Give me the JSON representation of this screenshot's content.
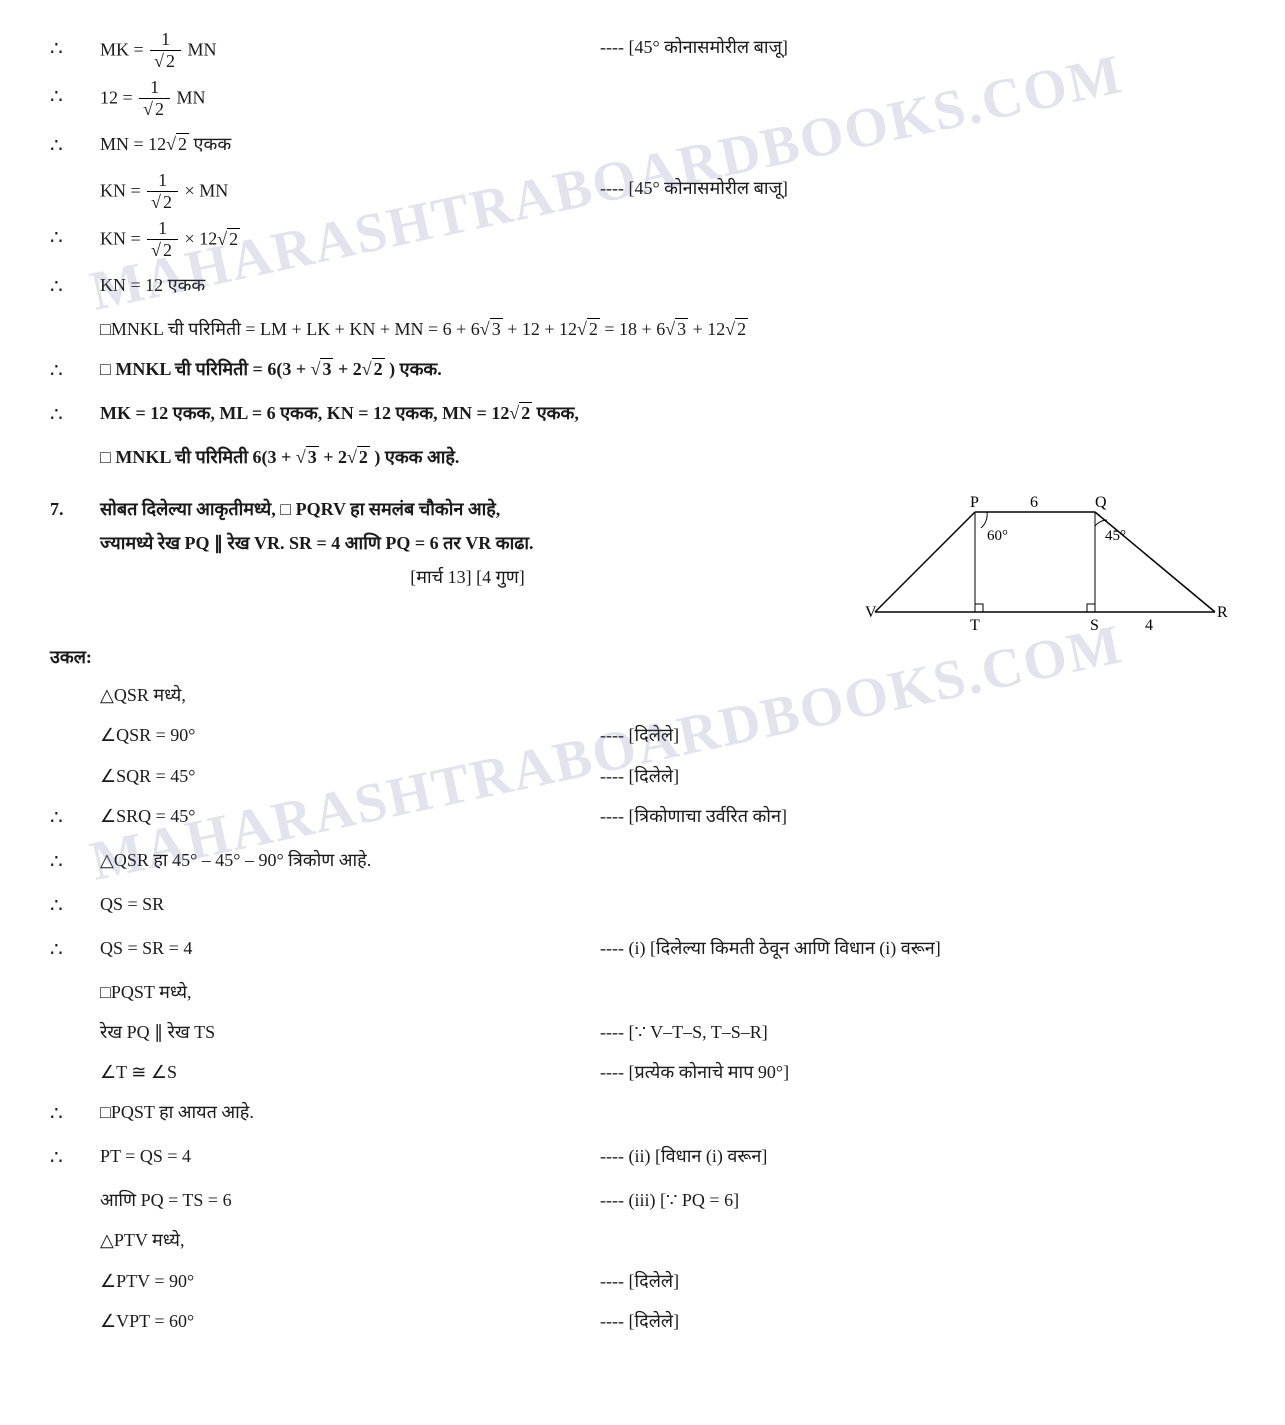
{
  "watermark": "MAHARASHTRABOARDBOOKS.COM",
  "lines": [
    {
      "th": "∴",
      "l": "MK = {f1}{s2} MN",
      "r": "---- [45° कोनासमोरील बाजू]"
    },
    {
      "th": "∴",
      "l": "12 = {f1}{s2} MN",
      "r": ""
    },
    {
      "th": "∴",
      "l": "MN = 12√2  एकक",
      "r": ""
    },
    {
      "th": "",
      "l": "KN = {f1}{s2} × MN",
      "r": "---- [45° कोनासमोरील बाजू]"
    },
    {
      "th": "∴",
      "l": "KN = {f1}{s2} × 12√2",
      "r": ""
    },
    {
      "th": "∴",
      "l": "KN = 12 एकक",
      "r": ""
    },
    {
      "th": "",
      "l": "□MNKL ची परिमिती = LM + LK + KN + MN = 6 + 6√3 + 12 + 12√2 = 18 + 6√3 + 12√2",
      "r": ""
    },
    {
      "th": "∴",
      "l": "□ MNKL ची परिमिती = 6(3 + √3 + 2√2 ) एकक.",
      "r": "",
      "bold": true
    },
    {
      "th": "∴",
      "l": "MK = 12 एकक, ML = 6 एकक, KN = 12 एकक, MN = 12√2  एकक,",
      "r": "",
      "bold": true
    },
    {
      "th": "",
      "l": "□ MNKL ची परिमिती 6(3 + √3 + 2√2 ) एकक आहे.",
      "r": "",
      "bold": true
    }
  ],
  "q7": {
    "num": "7.",
    "text1": "सोबत दिलेल्या आकृतीमध्ये, □ PQRV हा समलंब चौकोन आहे,",
    "text2": "ज्यामध्ये रेख PQ ∥ रेख VR. SR = 4 आणि PQ = 6 तर VR काढा.",
    "marks": "[मार्च 13] [4 गुण]"
  },
  "diagram": {
    "P": "P",
    "Q": "Q",
    "V": "V",
    "R": "R",
    "T": "T",
    "S": "S",
    "ang60": "60°",
    "ang45": "45°",
    "pq": "6",
    "sr": "4"
  },
  "ukal": "उकल:",
  "sol": [
    {
      "th": "",
      "l": "△QSR मध्ये,",
      "r": ""
    },
    {
      "th": "",
      "l": "∠QSR = 90°",
      "r": "---- [दिलेले]"
    },
    {
      "th": "",
      "l": "∠SQR = 45°",
      "r": "---- [दिलेले]"
    },
    {
      "th": "∴",
      "l": "∠SRQ = 45°",
      "r": "---- [त्रिकोणाचा उर्वरित कोन]"
    },
    {
      "th": "∴",
      "l": "△QSR हा 45° – 45° – 90° त्रिकोण आहे.",
      "r": ""
    },
    {
      "th": "∴",
      "l": "QS = SR",
      "r": ""
    },
    {
      "th": "∴",
      "l": "QS = SR = 4",
      "r": "---- (i) [दिलेल्या किमती ठेवून आणि विधान (i) वरून]"
    },
    {
      "th": "",
      "l": "□PQST मध्ये,",
      "r": ""
    },
    {
      "th": "",
      "l": "रेख PQ ∥ रेख TS",
      "r": "---- [∵ V–T–S, T–S–R]"
    },
    {
      "th": "",
      "l": "∠T ≅ ∠S",
      "r": "---- [प्रत्येक कोनाचे माप 90°]"
    },
    {
      "th": "∴",
      "l": "□PQST हा आयत आहे.",
      "r": ""
    },
    {
      "th": "∴",
      "l": "PT = QS = 4",
      "r": "---- (ii) [विधान (i) वरून]"
    },
    {
      "th": "",
      "l": "आणि PQ = TS = 6",
      "r": "---- (iii) [∵ PQ = 6]"
    },
    {
      "th": "",
      "l": "△PTV मध्ये,",
      "r": ""
    },
    {
      "th": "",
      "l": "∠PTV = 90°",
      "r": "---- [दिलेले]"
    },
    {
      "th": "",
      "l": "∠VPT = 60°",
      "r": "---- [दिलेले]"
    }
  ]
}
